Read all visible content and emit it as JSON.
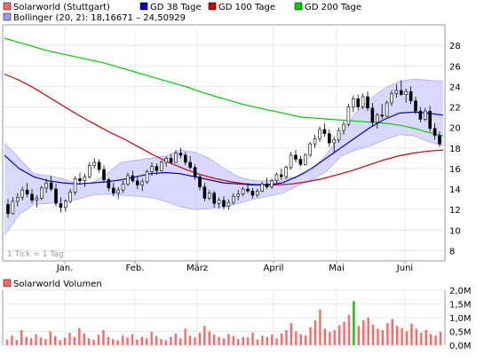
{
  "legend": {
    "items": [
      {
        "label": "Solarworld (Stuttgart)",
        "color": "#ff6666"
      },
      {
        "label": "GD 38 Tage",
        "color": "#0000cc"
      },
      {
        "label": "GD 100 Tage",
        "color": "#cc0000"
      },
      {
        "label": "GD 200 Tage",
        "color": "#00cc00"
      }
    ],
    "bollinger": {
      "label": "Bollinger (20, 2): 18,16671 – 24,50929",
      "color": "#9999ff"
    }
  },
  "tick_note": "1 Tick = 1 Tag",
  "volume_title": "Solarworld Volumen",
  "colors": {
    "up": "#ffffff",
    "down": "#000000",
    "candle_outline": "#000000",
    "band": "#ccccff",
    "band_edge": "#aaaaff",
    "grid": "#e8e8e8",
    "volume": "#ff6666",
    "volume_up": "#00cc00"
  },
  "chart_data": [
    {
      "type": "candlestick",
      "title": "Solarworld (Stuttgart)",
      "x_tick_labels": [
        "Jan.",
        "Feb.",
        "März",
        "April",
        "Mai",
        "Juni"
      ],
      "y_tick_labels": [
        "8",
        "10",
        "12",
        "14",
        "16",
        "18",
        "20",
        "22",
        "24",
        "26",
        "28"
      ],
      "ylim": [
        7,
        30
      ],
      "grid": true,
      "ohlc": [
        [
          12.5,
          13.0,
          11.2,
          11.6
        ],
        [
          11.6,
          13.2,
          11.5,
          12.8
        ],
        [
          12.8,
          13.6,
          12.3,
          13.2
        ],
        [
          13.2,
          14.2,
          12.9,
          13.9
        ],
        [
          13.9,
          14.6,
          13.2,
          13.5
        ],
        [
          13.5,
          14.0,
          12.6,
          12.9
        ],
        [
          12.9,
          13.4,
          12.2,
          13.1
        ],
        [
          13.1,
          14.3,
          12.9,
          14.1
        ],
        [
          14.1,
          15.0,
          13.6,
          14.6
        ],
        [
          14.6,
          15.3,
          13.8,
          14.0
        ],
        [
          14.0,
          14.5,
          12.3,
          12.6
        ],
        [
          12.6,
          13.2,
          11.7,
          12.2
        ],
        [
          12.2,
          13.0,
          11.8,
          12.8
        ],
        [
          12.8,
          14.0,
          12.6,
          13.7
        ],
        [
          13.7,
          15.2,
          13.4,
          15.0
        ],
        [
          15.0,
          15.6,
          14.4,
          14.8
        ],
        [
          14.8,
          15.5,
          14.2,
          15.2
        ],
        [
          15.2,
          16.6,
          15.0,
          16.3
        ],
        [
          16.3,
          17.0,
          16.0,
          16.6
        ],
        [
          16.6,
          16.9,
          15.6,
          15.9
        ],
        [
          15.9,
          16.3,
          14.6,
          14.9
        ],
        [
          14.9,
          15.1,
          13.8,
          14.1
        ],
        [
          14.1,
          14.6,
          13.3,
          13.6
        ],
        [
          13.6,
          14.2,
          13.0,
          13.9
        ],
        [
          13.9,
          14.8,
          13.6,
          14.5
        ],
        [
          14.5,
          15.6,
          14.3,
          15.3
        ],
        [
          15.3,
          15.8,
          14.6,
          14.8
        ],
        [
          14.8,
          15.2,
          14.0,
          14.4
        ],
        [
          14.4,
          15.0,
          13.8,
          14.7
        ],
        [
          14.7,
          15.9,
          14.5,
          15.7
        ],
        [
          15.7,
          16.6,
          15.3,
          16.2
        ],
        [
          16.2,
          16.5,
          15.4,
          15.8
        ],
        [
          15.8,
          16.8,
          15.7,
          16.6
        ],
        [
          16.6,
          17.2,
          16.2,
          17.0
        ],
        [
          17.0,
          17.4,
          16.4,
          16.6
        ],
        [
          16.6,
          17.8,
          16.5,
          17.5
        ],
        [
          17.5,
          18.0,
          17.0,
          17.3
        ],
        [
          17.3,
          17.6,
          16.3,
          16.6
        ],
        [
          16.6,
          17.2,
          15.9,
          16.1
        ],
        [
          16.1,
          16.4,
          14.9,
          15.2
        ],
        [
          15.2,
          15.4,
          13.9,
          14.2
        ],
        [
          14.2,
          14.6,
          12.8,
          13.1
        ],
        [
          13.1,
          13.9,
          12.9,
          13.6
        ],
        [
          13.6,
          13.8,
          12.2,
          12.6
        ],
        [
          12.6,
          13.2,
          12.1,
          12.9
        ],
        [
          12.9,
          13.3,
          12.0,
          12.3
        ],
        [
          12.3,
          13.0,
          12.0,
          12.7
        ],
        [
          12.7,
          13.6,
          12.5,
          13.3
        ],
        [
          13.3,
          13.9,
          12.9,
          13.5
        ],
        [
          13.5,
          14.2,
          13.3,
          14.0
        ],
        [
          14.0,
          14.6,
          13.6,
          13.8
        ],
        [
          13.8,
          14.1,
          13.1,
          13.4
        ],
        [
          13.4,
          14.0,
          13.2,
          13.8
        ],
        [
          13.8,
          14.7,
          13.7,
          14.5
        ],
        [
          14.5,
          15.1,
          14.0,
          14.2
        ],
        [
          14.2,
          15.0,
          14.0,
          14.8
        ],
        [
          14.8,
          15.6,
          14.5,
          15.4
        ],
        [
          15.4,
          16.0,
          14.9,
          15.2
        ],
        [
          15.2,
          16.3,
          15.0,
          16.1
        ],
        [
          16.1,
          17.6,
          15.9,
          17.3
        ],
        [
          17.3,
          17.8,
          16.6,
          16.9
        ],
        [
          16.9,
          17.2,
          16.2,
          16.4
        ],
        [
          16.4,
          17.5,
          16.3,
          17.3
        ],
        [
          17.3,
          18.6,
          17.1,
          18.4
        ],
        [
          18.4,
          19.3,
          18.0,
          18.9
        ],
        [
          18.9,
          20.1,
          18.6,
          19.8
        ],
        [
          19.8,
          20.4,
          19.1,
          19.4
        ],
        [
          19.4,
          19.8,
          18.1,
          18.5
        ],
        [
          18.5,
          19.1,
          17.6,
          18.8
        ],
        [
          18.8,
          20.0,
          18.5,
          19.7
        ],
        [
          19.7,
          20.6,
          19.3,
          20.3
        ],
        [
          20.3,
          22.3,
          20.1,
          22.0
        ],
        [
          22.0,
          23.1,
          21.5,
          22.8
        ],
        [
          22.8,
          23.2,
          21.7,
          22.0
        ],
        [
          22.0,
          23.3,
          21.8,
          23.0
        ],
        [
          23.0,
          23.5,
          21.6,
          21.9
        ],
        [
          21.9,
          22.4,
          20.1,
          20.5
        ],
        [
          20.5,
          21.4,
          19.9,
          21.2
        ],
        [
          21.2,
          22.3,
          20.8,
          21.1
        ],
        [
          21.1,
          22.6,
          21.0,
          22.4
        ],
        [
          22.4,
          23.6,
          22.1,
          23.3
        ],
        [
          23.3,
          24.2,
          22.9,
          23.6
        ],
        [
          23.6,
          24.6,
          23.1,
          23.2
        ],
        [
          23.2,
          23.8,
          22.4,
          23.5
        ],
        [
          23.5,
          24.0,
          22.3,
          22.6
        ],
        [
          22.6,
          23.0,
          21.3,
          21.6
        ],
        [
          21.6,
          22.0,
          20.5,
          20.8
        ],
        [
          20.8,
          21.9,
          20.6,
          21.6
        ],
        [
          21.6,
          22.1,
          19.6,
          19.9
        ],
        [
          19.9,
          20.4,
          18.8,
          19.2
        ],
        [
          19.2,
          19.6,
          18.1,
          18.4
        ]
      ],
      "series": [
        {
          "name": "GD 38 Tage",
          "color": "#0000cc",
          "values": [
            17.3,
            16.0,
            15.2,
            14.8,
            14.6,
            14.5,
            14.6,
            14.7,
            14.9,
            15.2,
            15.5,
            15.6,
            15.5,
            15.2,
            14.9,
            14.6,
            14.5,
            14.4,
            14.4,
            14.6,
            15.2,
            16.0,
            17.0,
            18.0,
            19.0,
            20.0,
            20.8,
            21.4,
            21.5,
            21.4,
            21.2
          ]
        },
        {
          "name": "GD 100 Tage",
          "color": "#cc0000",
          "values": [
            25.2,
            24.6,
            23.8,
            22.9,
            22.0,
            21.1,
            20.3,
            19.5,
            18.8,
            18.0,
            17.2,
            16.5,
            15.9,
            15.4,
            15.0,
            14.7,
            14.5,
            14.4,
            14.4,
            14.5,
            14.7,
            15.0,
            15.4,
            15.8,
            16.3,
            16.8,
            17.2,
            17.5,
            17.7,
            17.8
          ]
        },
        {
          "name": "GD 200 Tage",
          "color": "#00cc00",
          "values": [
            28.7,
            28.3,
            27.9,
            27.5,
            27.2,
            26.9,
            26.6,
            26.3,
            25.9,
            25.5,
            25.1,
            24.7,
            24.3,
            23.9,
            23.4,
            23.0,
            22.6,
            22.2,
            21.9,
            21.6,
            21.3,
            21.0,
            20.9,
            20.8,
            20.7,
            20.6,
            20.5,
            20.4,
            20.2,
            19.9,
            19.5,
            19.2
          ]
        },
        {
          "name": "Bollinger upper",
          "values": [
            18.5,
            17.0,
            15.5,
            15.3,
            15.0,
            14.5,
            14.6,
            15.5,
            16.6,
            16.8,
            17.0,
            17.2,
            17.8,
            17.6,
            17.0,
            16.0,
            15.2,
            14.8,
            14.8,
            15.0,
            15.2,
            15.8,
            17.3,
            19.3,
            21.4,
            22.8,
            23.8,
            24.5,
            24.7,
            24.6,
            24.5
          ]
        },
        {
          "name": "Bollinger lower",
          "values": [
            9.5,
            11.5,
            12.5,
            12.6,
            12.8,
            13.0,
            13.4,
            13.5,
            13.4,
            13.3,
            13.2,
            12.8,
            12.3,
            12.0,
            12.1,
            12.2,
            12.6,
            13.0,
            13.3,
            13.6,
            14.3,
            14.9,
            15.7,
            17.2,
            17.8,
            18.2,
            18.8,
            19.3,
            19.2,
            18.6,
            18.2
          ]
        }
      ]
    },
    {
      "type": "bar",
      "title": "Solarworld Volumen",
      "y_tick_labels": [
        "0,0M",
        "0,5M",
        "1,0M",
        "1,5M",
        "2,0M"
      ],
      "ylim": [
        0,
        2.0
      ],
      "unit": "M",
      "values": [
        0.2,
        0.35,
        0.18,
        0.55,
        0.3,
        0.25,
        0.4,
        0.28,
        0.22,
        0.5,
        0.33,
        0.18,
        0.27,
        0.45,
        0.3,
        0.62,
        0.42,
        0.25,
        0.2,
        0.38,
        0.55,
        0.3,
        0.22,
        0.18,
        0.35,
        0.28,
        0.4,
        0.2,
        0.3,
        0.25,
        0.48,
        0.33,
        0.22,
        0.18,
        0.3,
        0.42,
        0.25,
        0.6,
        0.35,
        0.28,
        0.45,
        0.7,
        0.5,
        0.38,
        0.3,
        0.25,
        0.4,
        0.33,
        0.22,
        0.3,
        0.28,
        0.45,
        0.2,
        0.35,
        0.3,
        0.38,
        0.25,
        0.42,
        0.55,
        0.8,
        0.5,
        0.4,
        0.35,
        0.65,
        0.9,
        1.3,
        0.6,
        0.48,
        0.55,
        0.72,
        0.85,
        1.1,
        1.6,
        0.7,
        0.9,
        1.0,
        0.75,
        0.6,
        0.55,
        0.8,
        0.95,
        0.7,
        0.62,
        0.5,
        0.78,
        0.6,
        0.45,
        0.55,
        0.4,
        0.35,
        0.48
      ],
      "highlight_index": 72
    }
  ]
}
